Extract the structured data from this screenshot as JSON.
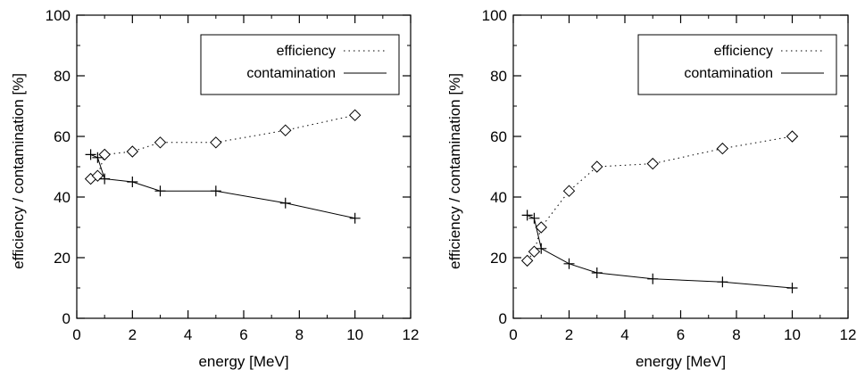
{
  "chart_data": [
    {
      "type": "line",
      "xlabel": "energy [MeV]",
      "ylabel": "efficiency / contamination [%]",
      "xlim": [
        0,
        12
      ],
      "ylim": [
        0,
        100
      ],
      "xticks": [
        0,
        2,
        4,
        6,
        8,
        10,
        12
      ],
      "yticks": [
        0,
        20,
        40,
        60,
        80,
        100
      ],
      "grid": false,
      "legend_position": "top-right",
      "series": [
        {
          "name": "efficiency",
          "line_style": "dotted",
          "marker": "diamond",
          "x": [
            0.5,
            0.75,
            1,
            2,
            3,
            5,
            7.5,
            10
          ],
          "y": [
            46,
            47,
            54,
            55,
            58,
            58,
            62,
            67
          ]
        },
        {
          "name": "contamination",
          "line_style": "solid",
          "marker": "plus",
          "x": [
            0.5,
            0.75,
            1,
            2,
            3,
            5,
            7.5,
            10
          ],
          "y": [
            54,
            53,
            46,
            45,
            42,
            42,
            38,
            33
          ]
        }
      ]
    },
    {
      "type": "line",
      "xlabel": "energy [MeV]",
      "ylabel": "efficiency / contamination [%]",
      "xlim": [
        0,
        12
      ],
      "ylim": [
        0,
        100
      ],
      "xticks": [
        0,
        2,
        4,
        6,
        8,
        10,
        12
      ],
      "yticks": [
        0,
        20,
        40,
        60,
        80,
        100
      ],
      "grid": false,
      "legend_position": "top-right",
      "series": [
        {
          "name": "efficiency",
          "line_style": "dotted",
          "marker": "diamond",
          "x": [
            0.5,
            0.75,
            1,
            2,
            3,
            5,
            7.5,
            10
          ],
          "y": [
            19,
            22,
            30,
            42,
            50,
            51,
            56,
            60
          ]
        },
        {
          "name": "contamination",
          "line_style": "solid",
          "marker": "plus",
          "x": [
            0.5,
            0.75,
            1,
            2,
            3,
            5,
            7.5,
            10
          ],
          "y": [
            34,
            33,
            23,
            18,
            15,
            13,
            12,
            10
          ]
        }
      ]
    }
  ]
}
